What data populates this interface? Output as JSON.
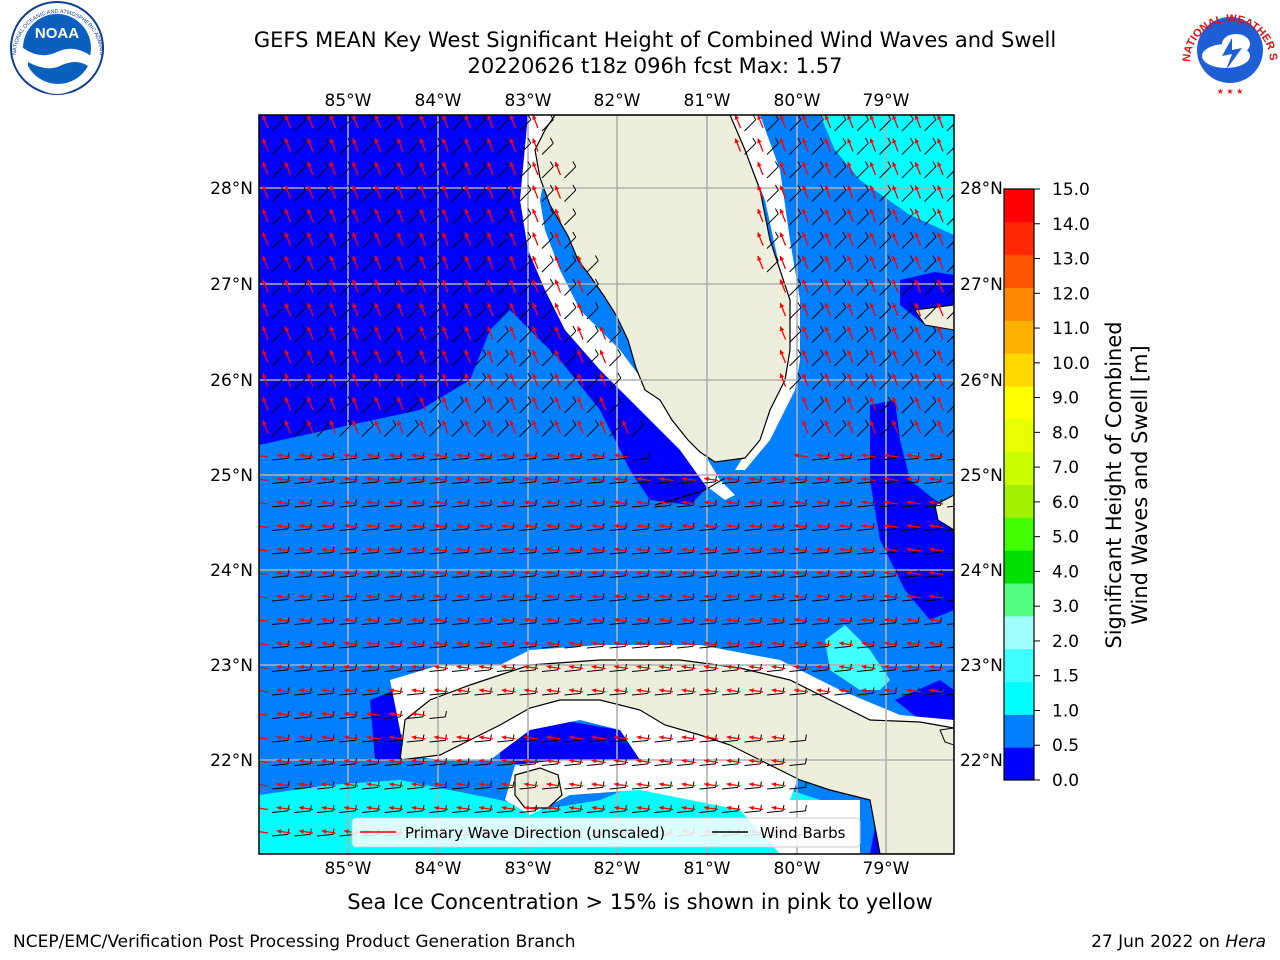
{
  "header": {
    "title_line1": "GEFS MEAN Key West Significant Height of Combined Wind Waves and Swell",
    "title_line2": "20220626 t18z 096h fcst   Max: 1.57"
  },
  "logos": {
    "noaa_text": "NOAA",
    "noaa_ring_text": "NATIONAL OCEANIC AND ATMOSPHERIC ADMINISTRATION · U.S. DEPARTMENT OF COMMERCE",
    "nws_ring_text": "NATIONAL WEATHER SERVICE"
  },
  "map": {
    "lon_labels": [
      "85°W",
      "84°W",
      "83°W",
      "82°W",
      "81°W",
      "80°W",
      "79°W"
    ],
    "lat_labels": [
      "28°N",
      "27°N",
      "26°N",
      "25°N",
      "24°N",
      "23°N",
      "22°N"
    ],
    "legend": {
      "primary_wave": "Primary Wave Direction (unscaled)",
      "wind_barbs": "Wind Barbs"
    },
    "colors": {
      "land": "#eeeedd",
      "band_0_0.5": "#0000ff",
      "band_0.5_1.0": "#0080ff",
      "band_1.0_1.5": "#00ffff",
      "wave_arrow": "#ff0000",
      "wind_barb": "#000000"
    }
  },
  "colorbar": {
    "label_line1": "Significant Height of Combined",
    "label_line2": "Wind Waves and Swell [m]",
    "ticks": [
      "0.0",
      "0.5",
      "1.0",
      "1.5",
      "2.0",
      "3.0",
      "4.0",
      "5.0",
      "6.0",
      "7.0",
      "8.0",
      "9.0",
      "10.0",
      "11.0",
      "12.0",
      "13.0",
      "14.0",
      "15.0"
    ],
    "colors": [
      "#0000ff",
      "#0080ff",
      "#00ffff",
      "#40ffff",
      "#a0ffff",
      "#50ff80",
      "#00e000",
      "#40ff00",
      "#a0f000",
      "#c8ff00",
      "#e8ff00",
      "#ffff00",
      "#ffd800",
      "#ffb000",
      "#ff8800",
      "#ff5500",
      "#ff2800",
      "#ff0000"
    ]
  },
  "footer": {
    "sea_ice_note": "Sea Ice Concentration > 15% is shown in pink to yellow",
    "branch": "NCEP/EMC/Verification Post Processing Product Generation Branch",
    "date": "27 Jun 2022 on ",
    "host": "Hera"
  }
}
